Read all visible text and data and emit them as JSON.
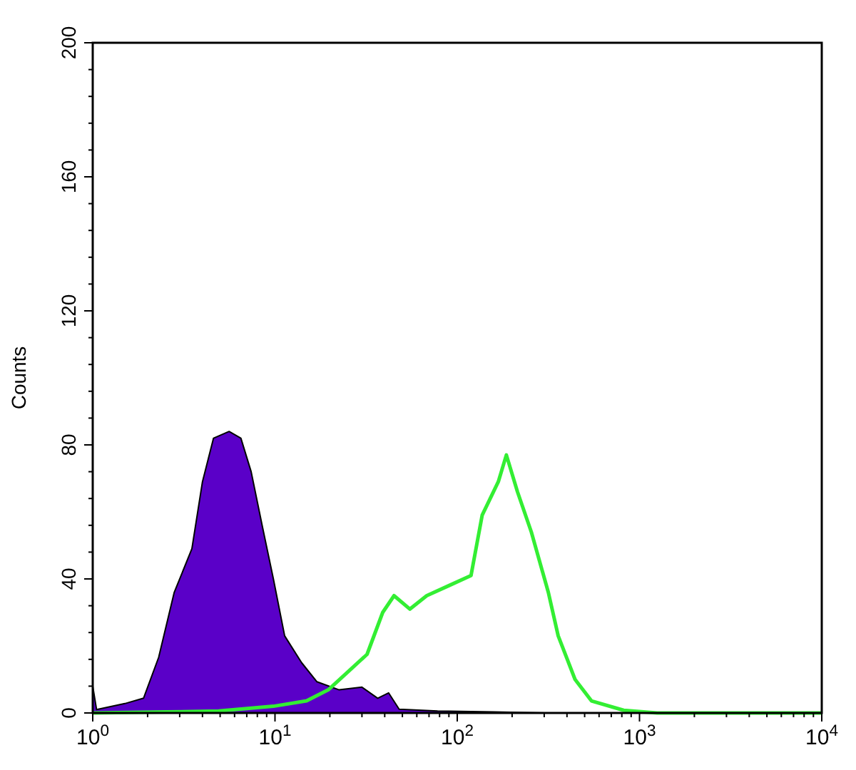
{
  "chart_data": {
    "type": "line",
    "ylabel": "Counts",
    "log": "x",
    "xlim": [
      1,
      10000
    ],
    "ylim": [
      0,
      200
    ],
    "xticks": [
      {
        "value": 1,
        "label": "10$^{0}$"
      },
      {
        "value": 2,
        "label": null
      },
      {
        "value": 3,
        "label": null
      },
      {
        "value": 4,
        "label": null
      },
      {
        "value": 5,
        "label": null
      },
      {
        "value": 6,
        "label": null
      },
      {
        "value": 7,
        "label": null
      },
      {
        "value": 8,
        "label": null
      },
      {
        "value": 9,
        "label": null
      },
      {
        "value": 10,
        "label": "10$^{1}$"
      },
      {
        "value": 20,
        "label": null
      },
      {
        "value": 30,
        "label": null
      },
      {
        "value": 40,
        "label": null
      },
      {
        "value": 50,
        "label": null
      },
      {
        "value": 60,
        "label": null
      },
      {
        "value": 70,
        "label": null
      },
      {
        "value": 80,
        "label": null
      },
      {
        "value": 90,
        "label": null
      },
      {
        "value": 100,
        "label": "10$^{2}$"
      },
      {
        "value": 200,
        "label": null
      },
      {
        "value": 300,
        "label": null
      },
      {
        "value": 400,
        "label": null
      },
      {
        "value": 500,
        "label": null
      },
      {
        "value": 600,
        "label": null
      },
      {
        "value": 700,
        "label": null
      },
      {
        "value": 800,
        "label": null
      },
      {
        "value": 900,
        "label": null
      },
      {
        "value": 1000,
        "label": "10$^{3}$"
      },
      {
        "value": 2000,
        "label": null
      },
      {
        "value": 3000,
        "label": null
      },
      {
        "value": 4000,
        "label": null
      },
      {
        "value": 5000,
        "label": null
      },
      {
        "value": 6000,
        "label": null
      },
      {
        "value": 7000,
        "label": null
      },
      {
        "value": 8000,
        "label": null
      },
      {
        "value": 9000,
        "label": null
      },
      {
        "value": 10000,
        "label": "10$^{4}$"
      }
    ],
    "yticks": [
      0,
      {
        "value": 8,
        "label": null
      },
      {
        "value": 16,
        "label": null
      },
      {
        "value": 24,
        "label": null
      },
      {
        "value": 32,
        "label": null
      },
      40,
      {
        "value": 48,
        "label": null
      },
      {
        "value": 56,
        "label": null
      },
      {
        "value": 64,
        "label": null
      },
      {
        "value": 72,
        "label": null
      },
      80,
      {
        "value": 88,
        "label": null
      },
      {
        "value": 96,
        "label": null
      },
      {
        "value": 104,
        "label": null
      },
      {
        "value": 112,
        "label": null
      },
      120,
      {
        "value": 128,
        "label": null
      },
      {
        "value": 136,
        "label": null
      },
      {
        "value": 144,
        "label": null
      },
      {
        "value": 152,
        "label": null
      },
      160,
      {
        "value": 168,
        "label": null
      },
      {
        "value": 176,
        "label": null
      },
      {
        "value": 184,
        "label": null
      },
      {
        "value": 192,
        "label": null
      },
      200
    ],
    "grid": false,
    "series": [
      {
        "type": "area",
        "color": "#5a00c8",
        "x": [
          1,
          1.05,
          1.5,
          1.9,
          2.3,
          2.8,
          3.5,
          4,
          4.6,
          5.6,
          6.5,
          7.4,
          8.5,
          9.8,
          11.3,
          14,
          17,
          22.5,
          30,
          36.6,
          42,
          48,
          78,
          158,
          316,
          10000
        ],
        "values": [
          8,
          1,
          2.8,
          4.4,
          16.6,
          36,
          49,
          69,
          82,
          84,
          82,
          72,
          56,
          40,
          23,
          15,
          9.3,
          6.9,
          7.7,
          4.4,
          6,
          1.1,
          0.6,
          0.3,
          0,
          0
        ]
      },
      {
        "color": "#33ee33",
        "x": [
          1,
          2.5,
          4.9,
          9.8,
          14.9,
          19.6,
          26,
          32,
          39,
          45,
          55,
          68,
          90,
          119,
          137,
          168,
          186,
          214,
          255,
          316,
          358,
          443,
          545,
          819,
          1250,
          10000
        ],
        "values": [
          0,
          0.3,
          0.6,
          2,
          3.6,
          6.9,
          13,
          17.5,
          30,
          35,
          31,
          35,
          38,
          41,
          59,
          69,
          77,
          66,
          54,
          36,
          23,
          10,
          3.6,
          0.8,
          0,
          0
        ]
      }
    ]
  }
}
